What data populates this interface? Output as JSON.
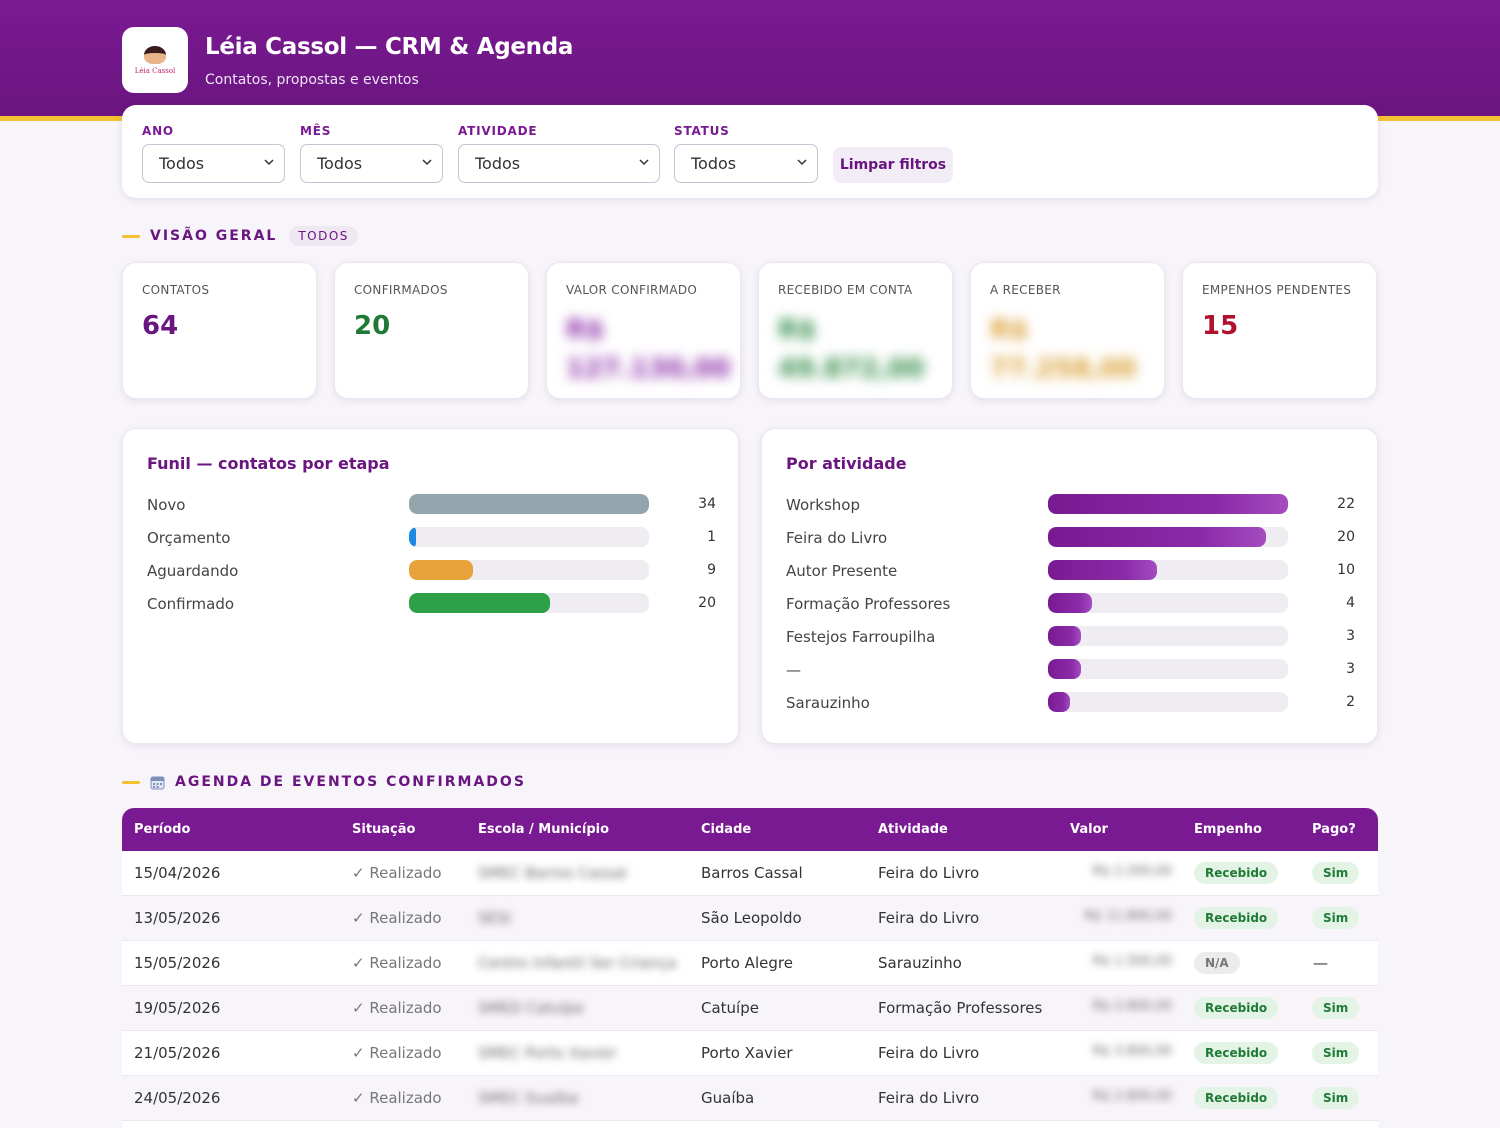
{
  "header": {
    "logo_text": "Léia Cassol",
    "title": "Léia Cassol — CRM & Agenda",
    "subtitle": "Contatos, propostas e eventos"
  },
  "filters": {
    "ano": {
      "label": "ANO",
      "value": "Todos"
    },
    "mes": {
      "label": "MÊS",
      "value": "Todos"
    },
    "atividade": {
      "label": "ATIVIDADE",
      "value": "Todos"
    },
    "status": {
      "label": "STATUS",
      "value": "Todos"
    },
    "clear_label": "Limpar filtros"
  },
  "overview": {
    "title": "VISÃO GERAL",
    "badge": "TODOS",
    "kpis": [
      {
        "label": "CONTATOS",
        "value": "64",
        "color": "#6a1580"
      },
      {
        "label": "CONFIRMADOS",
        "value": "20",
        "color": "#1f7a35"
      },
      {
        "label": "VALOR CONFIRMADO",
        "line1": "R$",
        "line2": "127.130,00",
        "color": "#8a2aa8"
      },
      {
        "label": "RECEBIDO EM CONTA",
        "line1": "R$",
        "line2": "49.872,00",
        "color": "#2e8a44"
      },
      {
        "label": "A RECEBER",
        "line1": "R$",
        "line2": "77.258,00",
        "color": "#d89a2a"
      },
      {
        "label": "EMPENHOS PENDENTES",
        "value": "15",
        "color": "#b0122e"
      }
    ]
  },
  "funnel": {
    "title": "Funil — contatos por etapa",
    "max": 34,
    "rows": [
      {
        "label": "Novo",
        "count": 34,
        "color": "#93a6ad"
      },
      {
        "label": "Orçamento",
        "count": 1,
        "color": "#1e88e5"
      },
      {
        "label": "Aguardando",
        "count": 9,
        "color": "#e8a23a"
      },
      {
        "label": "Confirmado",
        "count": 20,
        "color": "#2ea148"
      }
    ]
  },
  "by_activity": {
    "title": "Por atividade",
    "max": 22,
    "rows": [
      {
        "label": "Workshop",
        "count": 22
      },
      {
        "label": "Feira do Livro",
        "count": 20
      },
      {
        "label": "Autor Presente",
        "count": 10
      },
      {
        "label": "Formação Professores",
        "count": 4
      },
      {
        "label": "Festejos Farroupilha",
        "count": 3
      },
      {
        "label": "—",
        "count": 3
      },
      {
        "label": "Sarauzinho",
        "count": 2
      }
    ]
  },
  "agenda": {
    "title": "AGENDA DE EVENTOS CONFIRMADOS",
    "columns": {
      "periodo": "Período",
      "situacao": "Situação",
      "escola": "Escola / Município",
      "cidade": "Cidade",
      "atividade": "Atividade",
      "valor": "Valor",
      "empenho": "Empenho",
      "pago": "Pago?"
    },
    "rows": [
      {
        "periodo": "15/04/2026",
        "situacao": "✓ Realizado",
        "escola": "SMEC Barros Cassal",
        "cidade": "Barros Cassal",
        "atividade": "Feira do Livro",
        "valor": "R$ 2.200,00",
        "empenho": "Recebido",
        "pago": "Sim"
      },
      {
        "periodo": "13/05/2026",
        "situacao": "✓ Realizado",
        "escola": "SESI",
        "cidade": "São Leopoldo",
        "atividade": "Feira do Livro",
        "valor": "R$ 11.800,00",
        "empenho": "Recebido",
        "pago": "Sim"
      },
      {
        "periodo": "15/05/2026",
        "situacao": "✓ Realizado",
        "escola": "Centro Infantil Ser Criança",
        "cidade": "Porto Alegre",
        "atividade": "Sarauzinho",
        "valor": "R$ 1.500,00",
        "empenho": "N/A",
        "pago": "—"
      },
      {
        "periodo": "19/05/2026",
        "situacao": "✓ Realizado",
        "escola": "SMED Catuípe",
        "cidade": "Catuípe",
        "atividade": "Formação Professores",
        "valor": "R$ 2.800,00",
        "empenho": "Recebido",
        "pago": "Sim"
      },
      {
        "periodo": "21/05/2026",
        "situacao": "✓ Realizado",
        "escola": "SMEC Porto Xavier",
        "cidade": "Porto Xavier",
        "atividade": "Feira do Livro",
        "valor": "R$ 3.800,00",
        "empenho": "Recebido",
        "pago": "Sim"
      },
      {
        "periodo": "24/05/2026",
        "situacao": "✓ Realizado",
        "escola": "SMEC Guaíba",
        "cidade": "Guaíba",
        "atividade": "Feira do Livro",
        "valor": "R$ 2.800,00",
        "empenho": "Recebido",
        "pago": "Sim"
      }
    ]
  },
  "colors": {
    "brand": "#7a1a92",
    "accent_gold": "#f2c230",
    "activity_bar": "#8a2aa8"
  }
}
